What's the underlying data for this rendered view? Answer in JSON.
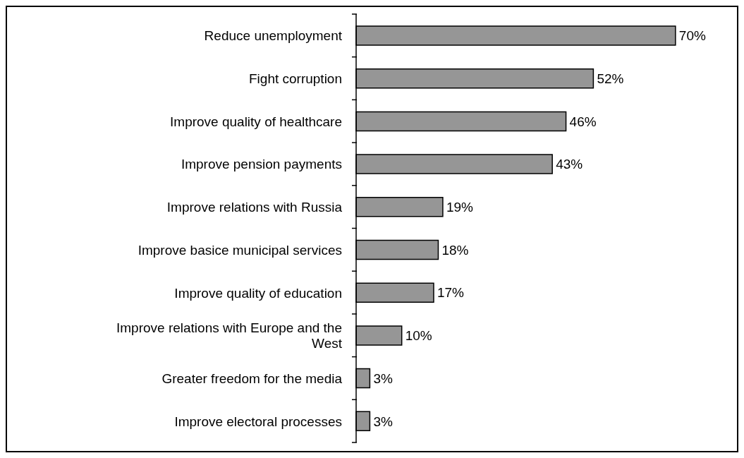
{
  "chart_data": {
    "type": "bar",
    "orientation": "horizontal",
    "categories": [
      "Reduce unemployment",
      "Fight corruption",
      "Improve quality of healthcare",
      "Improve pension payments",
      "Improve relations with Russia",
      "Improve basice municipal services",
      "Improve quality of education",
      "Improve relations with Europe and the West",
      "Greater freedom for the media",
      "Improve electoral processes"
    ],
    "values": [
      70,
      52,
      46,
      43,
      19,
      18,
      17,
      10,
      3,
      3
    ],
    "value_labels": [
      "70%",
      "52%",
      "46%",
      "43%",
      "19%",
      "18%",
      "17%",
      "10%",
      "3%",
      "3%"
    ],
    "color": "#969696",
    "grid": false,
    "legend": false
  }
}
